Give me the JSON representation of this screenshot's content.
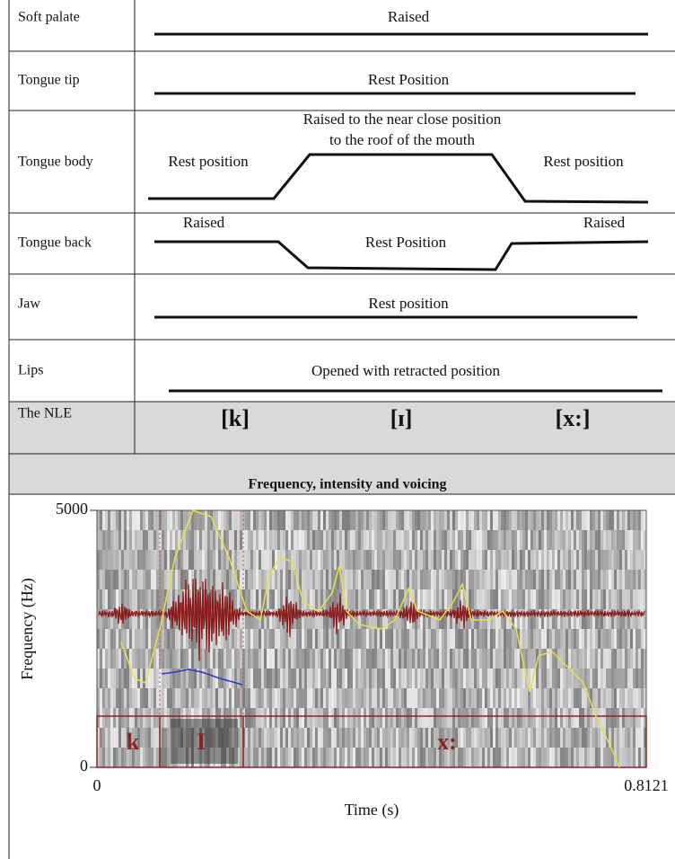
{
  "rows": [
    {
      "label": "Soft palate",
      "annotations": [
        "Raised"
      ]
    },
    {
      "label": "Tongue tip",
      "annotations": [
        "Rest Position"
      ]
    },
    {
      "label": "Tongue body",
      "annotations": [
        "Raised to the near close position",
        "to the roof of the mouth",
        "Rest position",
        "Rest position"
      ]
    },
    {
      "label": "Tongue back",
      "annotations": [
        "Raised",
        "Raised",
        "Rest Position"
      ]
    },
    {
      "label": "Jaw",
      "annotations": [
        "Rest position"
      ]
    },
    {
      "label": "Lips",
      "annotations": [
        "Opened with retracted position"
      ]
    }
  ],
  "nle": {
    "label": "The NLE",
    "segments": [
      "[k]",
      "[ɪ]",
      "[x:]"
    ]
  },
  "section_title": "Frequency, intensity and voicing",
  "spectrogram": {
    "y_axis_label": "Frequency (Hz)",
    "x_axis_label": "Time (s)",
    "yticks": [
      5000,
      0
    ],
    "xticks": [
      0,
      0.8121
    ],
    "segments": [
      "k",
      "I",
      "x:"
    ]
  }
}
